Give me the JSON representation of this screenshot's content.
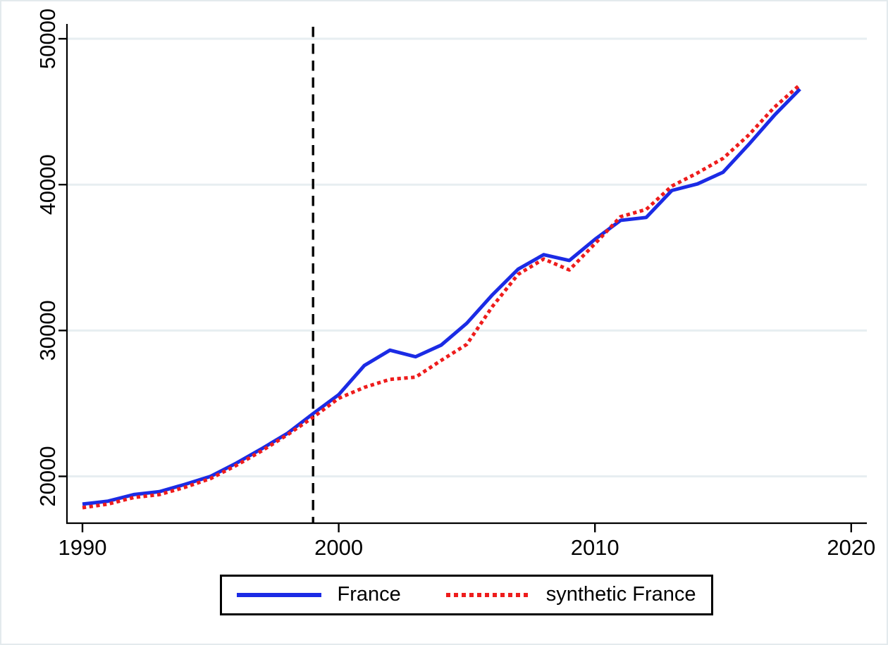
{
  "chart_data": {
    "type": "line",
    "title": "",
    "xlabel": "",
    "ylabel": "",
    "x": [
      1990,
      1991,
      1992,
      1993,
      1994,
      1995,
      1996,
      1997,
      1998,
      1999,
      2000,
      2001,
      2002,
      2003,
      2004,
      2005,
      2006,
      2007,
      2008,
      2009,
      2010,
      2011,
      2012,
      2013,
      2014,
      2015,
      2016,
      2017,
      2018
    ],
    "series": [
      {
        "name": "France",
        "color": "#1b2be5",
        "line_style": "solid",
        "values": [
          18100,
          18300,
          18750,
          18950,
          19450,
          20000,
          20900,
          21900,
          22950,
          24300,
          25600,
          27600,
          28650,
          28200,
          29000,
          30500,
          32450,
          34200,
          35200,
          34800,
          36250,
          37550,
          37750,
          39600,
          40050,
          40850,
          42750,
          44750,
          46550
        ]
      },
      {
        "name": "synthetic France",
        "color": "#ee1c1c",
        "line_style": "dotted",
        "values": [
          17850,
          18100,
          18550,
          18750,
          19250,
          19850,
          20750,
          21750,
          22850,
          24050,
          25350,
          26100,
          26650,
          26800,
          27950,
          29050,
          31650,
          33850,
          34900,
          34150,
          35950,
          37800,
          38300,
          39900,
          40800,
          41800,
          43400,
          45300,
          46850
        ]
      }
    ],
    "x_ticks": [
      1990,
      2000,
      2010,
      2020
    ],
    "y_ticks": [
      20000,
      30000,
      40000,
      50000
    ],
    "xlim": [
      1989.4,
      2020.6
    ],
    "ylim": [
      16800,
      51000
    ],
    "treatment_line": {
      "x": 1999,
      "color": "#000000",
      "style": "dashed"
    },
    "grid": "horizontal",
    "gridline_color": "#e7eef1",
    "axis_color": "#000000",
    "legend_position": "bottom-center"
  },
  "legend": {
    "entries": [
      {
        "label": "France"
      },
      {
        "label": "synthetic France"
      }
    ]
  }
}
